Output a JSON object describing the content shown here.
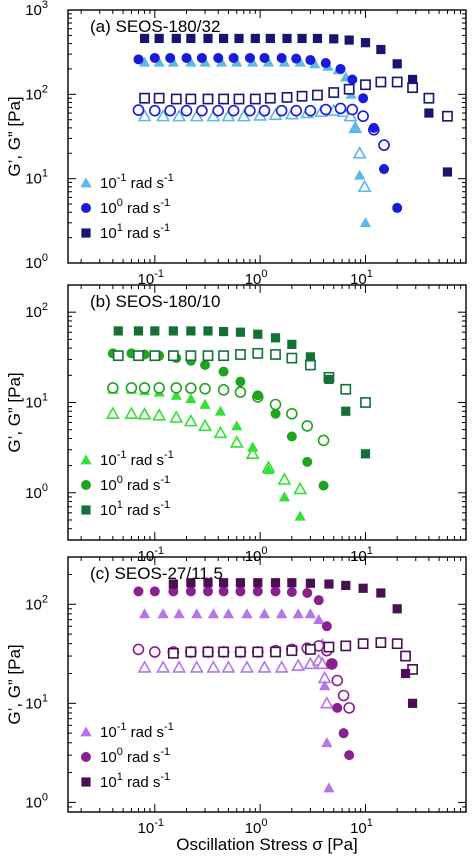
{
  "chart_data": [
    {
      "type": "scatter",
      "panel_label": "(a) SEOS-180/32",
      "ylabel": "G’, G” [Pa]",
      "xscale": "log",
      "yscale": "log",
      "xlim": [
        0.015,
        90
      ],
      "ylim": [
        1,
        1000
      ],
      "y_ticks": [
        {
          "v": 1,
          "label": "10",
          "exp": "0"
        },
        {
          "v": 10,
          "label": "10",
          "exp": "1"
        },
        {
          "v": 100,
          "label": "10",
          "exp": "2"
        },
        {
          "v": 1000,
          "label": "10",
          "exp": "3"
        }
      ],
      "legend": [
        "10",
        "10",
        "10"
      ],
      "legend_exponents": [
        "-1",
        "0",
        "1"
      ],
      "legend_unit": "rad s",
      "legend_unit_exp": "-1",
      "legend_position": "bottom-left",
      "series": [
        {
          "name": "10-1 rad s-1",
          "color": "#5bb8e8",
          "marker": "triangle",
          "G_prime": {
            "x": [
              0.08,
              0.11,
              0.15,
              0.22,
              0.3,
              0.43,
              0.6,
              0.85,
              1.2,
              1.7,
              2.4,
              3.3,
              4.4,
              5.5,
              6.5,
              7.3,
              8.0,
              8.8,
              10.0
            ],
            "y": [
              240,
              240,
              240,
              240,
              240,
              240,
              240,
              240,
              240,
              240,
              240,
              230,
              215,
              195,
              160,
              100,
              40,
              11,
              3
            ]
          },
          "G_double_prime": {
            "x": [
              0.08,
              0.12,
              0.17,
              0.25,
              0.36,
              0.5,
              0.7,
              1.0,
              1.4,
              2.0,
              2.8,
              3.8,
              5.0,
              6.2,
              7.2,
              8.0,
              8.8,
              9.8
            ],
            "y": [
              55,
              55,
              55,
              55,
              55,
              55,
              55,
              56,
              57,
              58,
              60,
              62,
              64,
              62,
              55,
              40,
              20,
              8
            ]
          }
        },
        {
          "name": "100 rad s-1",
          "color": "#1a1ad8",
          "marker": "circle",
          "G_prime": {
            "x": [
              0.07,
              0.1,
              0.14,
              0.2,
              0.28,
              0.4,
              0.56,
              0.8,
              1.1,
              1.6,
              2.2,
              3.0,
              4.2,
              5.8,
              7.5,
              9.5,
              12.0,
              15.0,
              20.0
            ],
            "y": [
              260,
              270,
              270,
              270,
              270,
              270,
              270,
              270,
              270,
              270,
              265,
              255,
              235,
              200,
              150,
              90,
              40,
              13,
              4.5
            ]
          },
          "G_double_prime": {
            "x": [
              0.07,
              0.1,
              0.14,
              0.2,
              0.28,
              0.4,
              0.56,
              0.8,
              1.1,
              1.6,
              2.2,
              3.0,
              4.2,
              5.8,
              7.5,
              9.5,
              12.0,
              15.0
            ],
            "y": [
              65,
              64,
              64,
              64,
              64,
              64,
              64,
              64,
              64,
              64,
              64,
              64,
              66,
              68,
              66,
              55,
              38,
              25
            ]
          }
        },
        {
          "name": "101 rad s-1",
          "color": "#161670",
          "marker": "square",
          "G_prime": {
            "x": [
              0.08,
              0.11,
              0.16,
              0.22,
              0.32,
              0.45,
              0.63,
              0.9,
              1.25,
              1.8,
              2.5,
              3.5,
              5.0,
              7.0,
              10.0,
              14.0,
              20.0,
              28.0,
              40.0,
              60.0
            ],
            "y": [
              460,
              460,
              460,
              460,
              460,
              460,
              460,
              460,
              460,
              460,
              460,
              460,
              455,
              440,
              410,
              340,
              230,
              150,
              60,
              12
            ]
          },
          "G_double_prime": {
            "x": [
              0.08,
              0.11,
              0.16,
              0.22,
              0.32,
              0.45,
              0.63,
              0.9,
              1.25,
              1.8,
              2.5,
              3.5,
              5.0,
              7.0,
              10.0,
              14.0,
              20.0,
              28.0,
              40.0,
              60.0
            ],
            "y": [
              90,
              90,
              88,
              88,
              88,
              88,
              88,
              88,
              90,
              92,
              95,
              98,
              105,
              115,
              130,
              140,
              140,
              120,
              90,
              55
            ]
          }
        }
      ]
    },
    {
      "type": "scatter",
      "panel_label": "(b) SEOS-180/10",
      "ylabel": "G’, G” [Pa]",
      "xscale": "log",
      "yscale": "log",
      "xlim": [
        0.015,
        90
      ],
      "ylim": [
        0.3,
        200
      ],
      "y_ticks": [
        {
          "v": 1,
          "label": "10",
          "exp": "0"
        },
        {
          "v": 10,
          "label": "10",
          "exp": "1"
        },
        {
          "v": 100,
          "label": "10",
          "exp": "2"
        }
      ],
      "legend": [
        "10",
        "10",
        "10"
      ],
      "legend_exponents": [
        "-1",
        "0",
        "1"
      ],
      "legend_unit": "rad s",
      "legend_unit_exp": "-1",
      "legend_position": "bottom-left",
      "series": [
        {
          "name": "10-1 rad s-1",
          "color": "#33e033",
          "marker": "triangle",
          "G_prime": {
            "x": [
              0.04,
              0.06,
              0.08,
              0.11,
              0.16,
              0.22,
              0.3,
              0.42,
              0.6,
              0.85,
              1.2,
              1.7,
              2.4
            ],
            "y": [
              14,
              14,
              13.5,
              13,
              12,
              11,
              9.5,
              8,
              5.5,
              3.2,
              1.8,
              0.9,
              0.55
            ]
          },
          "G_double_prime": {
            "x": [
              0.04,
              0.06,
              0.08,
              0.11,
              0.16,
              0.22,
              0.3,
              0.42,
              0.6,
              0.85,
              1.2,
              1.7,
              2.4
            ],
            "y": [
              7.5,
              7.5,
              7.4,
              7.2,
              6.8,
              6.2,
              5.5,
              4.6,
              3.6,
              2.7,
              1.9,
              1.4,
              1.1
            ]
          }
        },
        {
          "name": "100 rad s-1",
          "color": "#21a321",
          "marker": "circle",
          "G_prime": {
            "x": [
              0.04,
              0.06,
              0.08,
              0.11,
              0.16,
              0.22,
              0.3,
              0.45,
              0.65,
              0.95,
              1.4,
              2.0,
              2.8,
              4.0
            ],
            "y": [
              35,
              35,
              34,
              33,
              31,
              29,
              26,
              22,
              17,
              12,
              7.5,
              4.2,
              2.2,
              1.2
            ]
          },
          "G_double_prime": {
            "x": [
              0.04,
              0.06,
              0.08,
              0.11,
              0.16,
              0.22,
              0.3,
              0.45,
              0.65,
              0.95,
              1.4,
              2.0,
              2.8,
              4.0
            ],
            "y": [
              14.5,
              14.5,
              14.5,
              14.5,
              14.5,
              14.4,
              14.2,
              13.8,
              13,
              11.5,
              9.5,
              7.5,
              5.5,
              3.8
            ]
          }
        },
        {
          "name": "101 rad s-1",
          "color": "#157038",
          "marker": "square",
          "G_prime": {
            "x": [
              0.045,
              0.07,
              0.1,
              0.15,
              0.22,
              0.32,
              0.45,
              0.65,
              0.95,
              1.4,
              2.0,
              3.0,
              4.5,
              6.5,
              10.0
            ],
            "y": [
              62,
              62,
              62,
              62,
              62,
              62,
              61,
              60,
              57,
              52,
              44,
              32,
              18,
              8,
              2.7
            ]
          },
          "G_double_prime": {
            "x": [
              0.045,
              0.07,
              0.1,
              0.15,
              0.22,
              0.32,
              0.45,
              0.65,
              0.95,
              1.4,
              2.0,
              3.0,
              4.5,
              6.5,
              10.0
            ],
            "y": [
              33,
              33,
              33,
              33,
              33,
              33,
              33,
              34,
              35,
              34,
              31,
              26,
              19,
              14,
              10
            ]
          }
        }
      ]
    },
    {
      "type": "scatter",
      "panel_label": "(c) SEOS-27/11.5",
      "ylabel": "G’, G” [Pa]",
      "xscale": "log",
      "yscale": "log",
      "xlim": [
        0.015,
        90
      ],
      "ylim": [
        0.8,
        300
      ],
      "y_ticks": [
        {
          "v": 1,
          "label": "10",
          "exp": "0"
        },
        {
          "v": 10,
          "label": "10",
          "exp": "1"
        },
        {
          "v": 100,
          "label": "10",
          "exp": "2"
        }
      ],
      "legend": [
        "10",
        "10",
        "10"
      ],
      "legend_exponents": [
        "-1",
        "0",
        "1"
      ],
      "legend_unit": "rad s",
      "legend_unit_exp": "-1",
      "legend_position": "bottom-left",
      "series": [
        {
          "name": "10-1 rad s-1",
          "color": "#b574e8",
          "marker": "triangle",
          "G_prime": {
            "x": [
              0.08,
              0.12,
              0.17,
              0.25,
              0.36,
              0.5,
              0.75,
              1.1,
              1.6,
              2.3,
              3.0,
              3.6,
              3.9,
              4.1,
              4.3,
              4.5
            ],
            "y": [
              80,
              80,
              80,
              80,
              80,
              80,
              80,
              80,
              80,
              80,
              80,
              70,
              40,
              15,
              4,
              1.4
            ]
          },
          "G_double_prime": {
            "x": [
              0.08,
              0.12,
              0.17,
              0.25,
              0.36,
              0.5,
              0.75,
              1.1,
              1.6,
              2.3,
              3.0,
              3.6,
              3.9,
              4.1,
              4.3
            ],
            "y": [
              23,
              23,
              23,
              23,
              23,
              23,
              23,
              23,
              23,
              24,
              25,
              27,
              25,
              18,
              10
            ]
          }
        },
        {
          "name": "100 rad s-1",
          "color": "#8c1f8f",
          "marker": "circle",
          "G_prime": {
            "x": [
              0.07,
              0.1,
              0.15,
              0.22,
              0.32,
              0.45,
              0.65,
              0.95,
              1.4,
              2.0,
              2.8,
              3.6,
              4.3,
              4.8,
              5.4,
              6.2,
              7.0
            ],
            "y": [
              135,
              135,
              135,
              135,
              135,
              135,
              135,
              135,
              135,
              133,
              130,
              110,
              60,
              25,
              9,
              5,
              3
            ]
          },
          "G_double_prime": {
            "x": [
              0.07,
              0.1,
              0.15,
              0.22,
              0.32,
              0.45,
              0.65,
              0.95,
              1.4,
              2.0,
              2.8,
              3.6,
              4.3,
              4.8,
              5.4,
              6.2,
              7.0
            ],
            "y": [
              35,
              33,
              33,
              33,
              33,
              33,
              33,
              33,
              34,
              35,
              36,
              38,
              34,
              25,
              17,
              12,
              9
            ]
          }
        },
        {
          "name": "101 rad s-1",
          "color": "#4a0f52",
          "marker": "square",
          "G_prime": {
            "x": [
              0.15,
              0.22,
              0.32,
              0.45,
              0.65,
              0.95,
              1.4,
              2.0,
              3.0,
              4.5,
              6.5,
              9.5,
              14.0,
              20.0,
              24.0,
              28.0
            ],
            "y": [
              160,
              165,
              165,
              165,
              165,
              165,
              165,
              165,
              163,
              160,
              155,
              145,
              130,
              90,
              20,
              10
            ]
          },
          "G_double_prime": {
            "x": [
              0.15,
              0.22,
              0.32,
              0.45,
              0.65,
              0.95,
              1.4,
              2.0,
              3.0,
              4.5,
              6.5,
              9.5,
              14.0,
              20.0,
              24.0,
              28.0
            ],
            "y": [
              32,
              33,
              33,
              33,
              33,
              33,
              33,
              34,
              35,
              37,
              38,
              40,
              41,
              40,
              30,
              22
            ]
          }
        }
      ]
    }
  ],
  "x_axis": {
    "label": "Oscillation Stress σ [Pa]",
    "ticks": [
      {
        "v": 0.1,
        "label": "10",
        "exp": "-1"
      },
      {
        "v": 1,
        "label": "10",
        "exp": "0"
      },
      {
        "v": 10,
        "label": "10",
        "exp": "1"
      }
    ]
  }
}
